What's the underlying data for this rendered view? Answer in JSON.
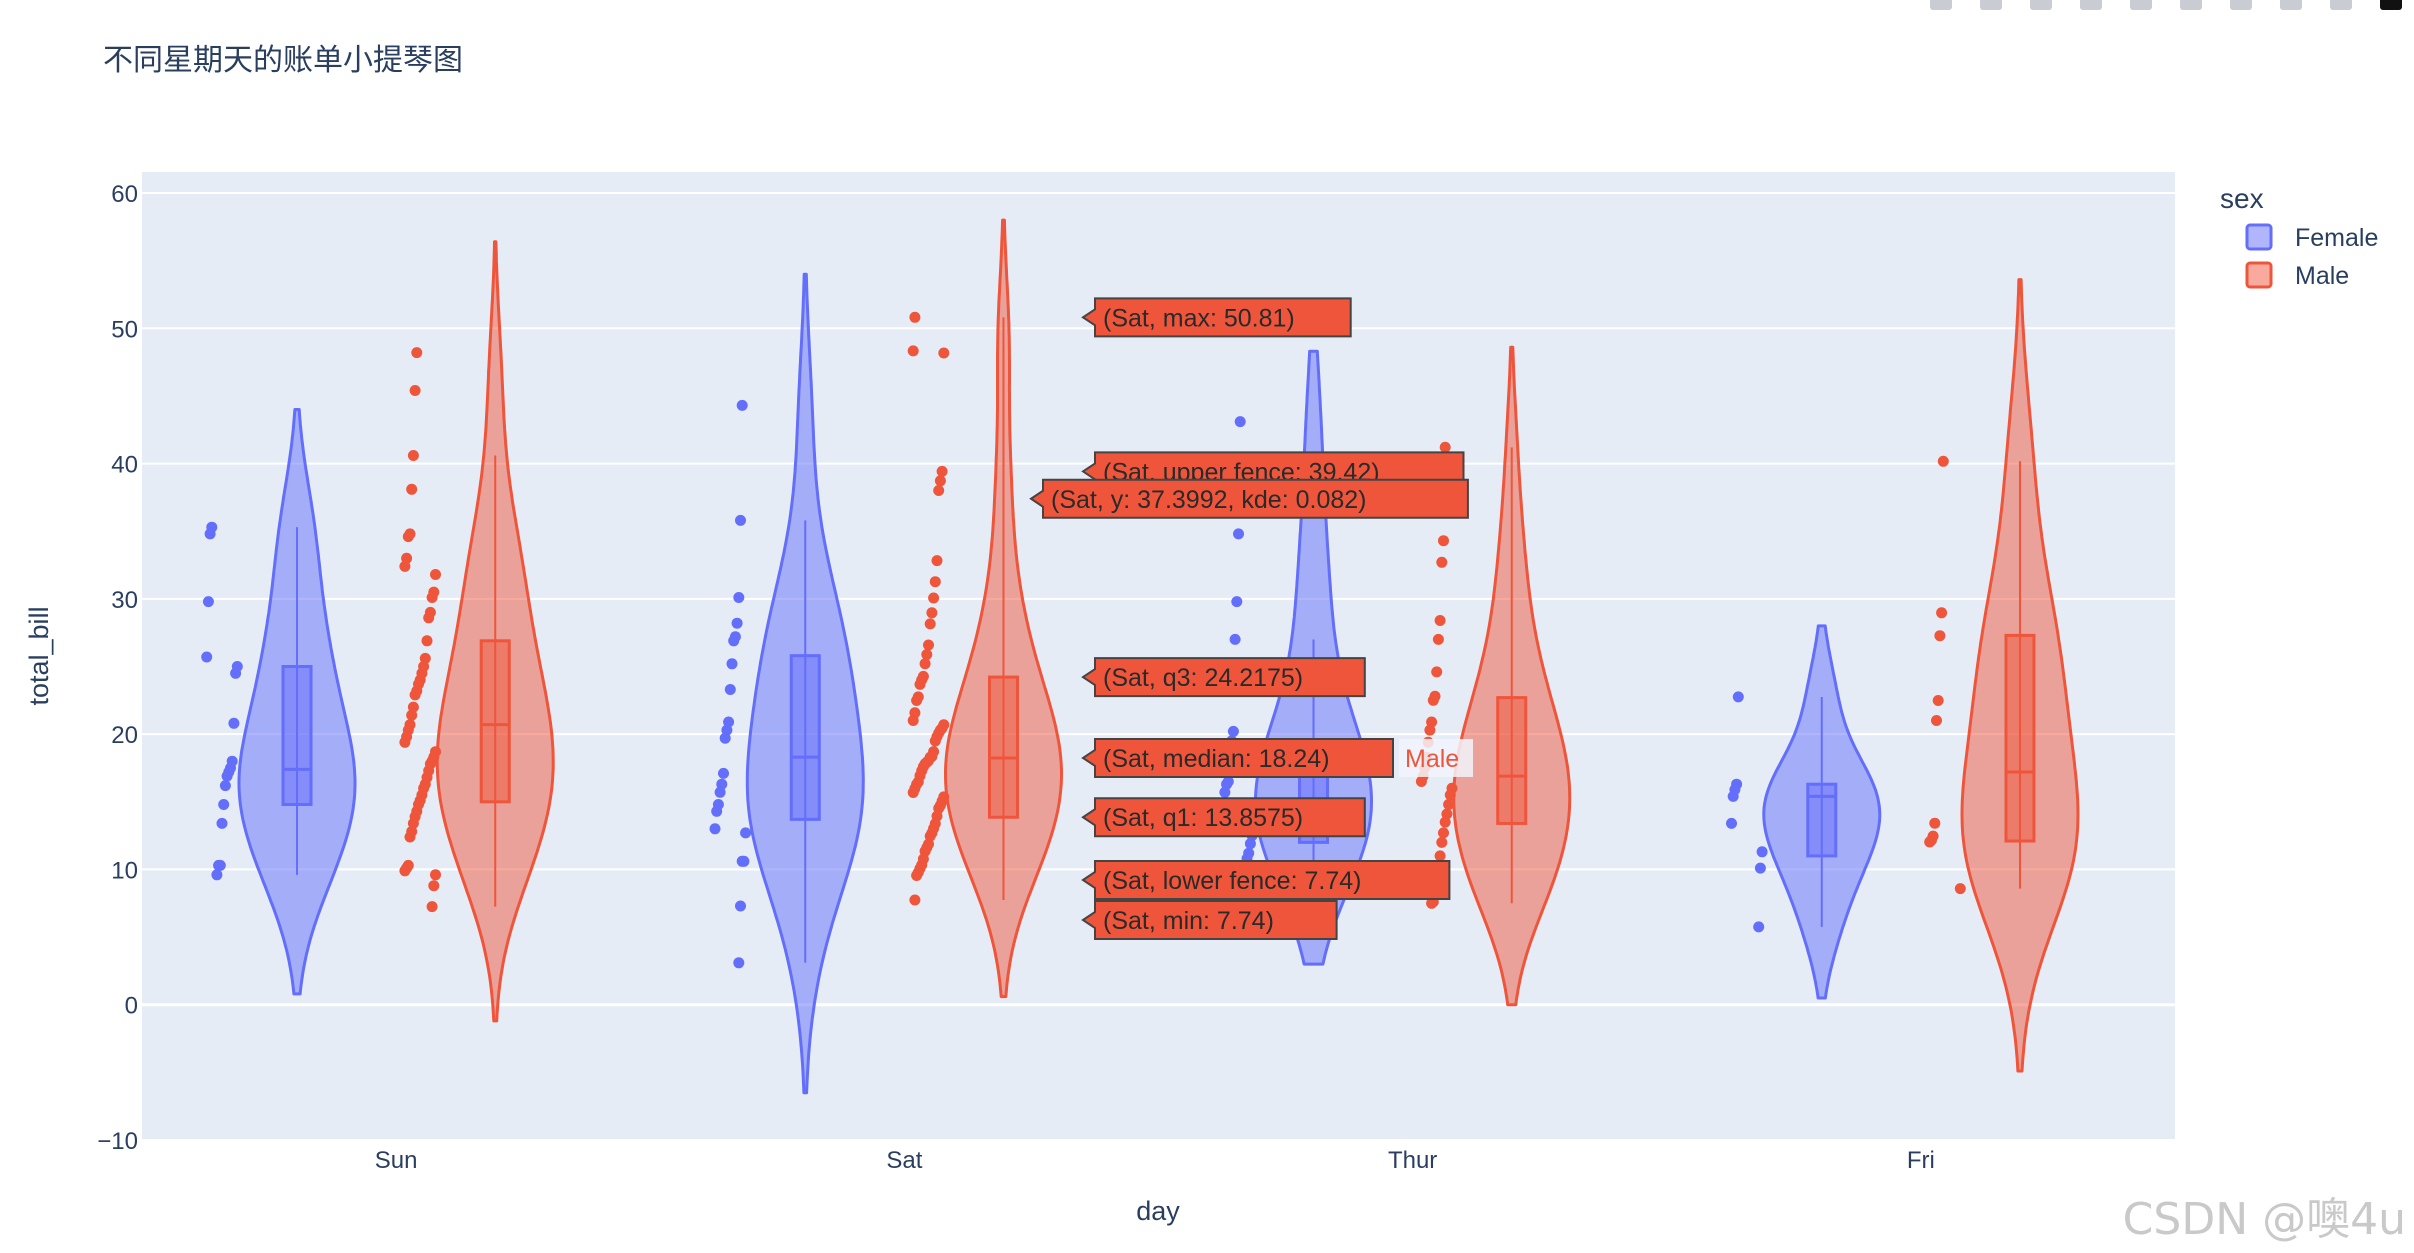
{
  "chart_data": {
    "type": "violin",
    "title": "不同星期天的账单小提琴图",
    "xlabel": "day",
    "ylabel": "total_bill",
    "categories": [
      "Sun",
      "Sat",
      "Thur",
      "Fri"
    ],
    "ylim": [
      -10,
      60
    ],
    "yticks": [
      -10,
      0,
      10,
      20,
      30,
      40,
      50,
      60
    ],
    "ytick_labels": [
      "−10",
      "0",
      "10",
      "20",
      "30",
      "40",
      "50",
      "60"
    ],
    "legend": {
      "title": "sex",
      "position": "top-right"
    },
    "colors": {
      "Female": "#636efa",
      "Male": "#ef553b",
      "plot_bg": "#e5ecf6"
    },
    "series": [
      {
        "name": "Female",
        "violins": [
          {
            "day": "Sun",
            "min": 9.6,
            "q1": 14.8,
            "median": 17.4,
            "q3": 25.0,
            "max": 35.3,
            "kde_min": 0.8,
            "kde_max": 44.0,
            "points": [
              35.3,
              34.8,
              29.8,
              25.7,
              25.0,
              24.5,
              20.8,
              18.0,
              17.5,
              17.2,
              16.9,
              16.2,
              14.8,
              13.4,
              10.3,
              10.3,
              9.6
            ]
          },
          {
            "day": "Sat",
            "min": 3.1,
            "q1": 13.7,
            "median": 18.3,
            "q3": 25.8,
            "max": 35.8,
            "kde_min": -6.5,
            "kde_max": 54.0,
            "points": [
              44.3,
              35.8,
              30.1,
              28.2,
              27.2,
              26.9,
              25.2,
              23.3,
              20.9,
              20.3,
              19.7,
              17.1,
              16.3,
              15.7,
              14.8,
              14.3,
              13.0,
              12.7,
              10.6,
              10.6,
              7.3,
              3.1
            ]
          },
          {
            "day": "Thur",
            "min": 8.5,
            "q1": 12.0,
            "median": 13.8,
            "q3": 18.5,
            "max": 27.0,
            "kde_min": 3.0,
            "kde_max": 48.3,
            "points": [
              43.1,
              34.8,
              29.8,
              27.0,
              20.2,
              19.5,
              17.5,
              16.5,
              16.3,
              15.7,
              14.1,
              13.5,
              12.5,
              11.9,
              11.2,
              10.8
            ]
          },
          {
            "day": "Fri",
            "min": 5.75,
            "q1": 11.0,
            "median": 15.4,
            "q3": 16.3,
            "max": 22.75,
            "kde_min": 0.5,
            "kde_max": 28.0,
            "points": [
              22.75,
              16.3,
              15.9,
              15.4,
              13.4,
              11.3,
              10.1,
              5.75
            ]
          }
        ]
      },
      {
        "name": "Male",
        "violins": [
          {
            "day": "Sun",
            "min": 7.25,
            "q1": 15.0,
            "median": 20.7,
            "q3": 26.9,
            "max": 40.6,
            "kde_min": -1.2,
            "kde_max": 56.4,
            "points": [
              48.2,
              45.4,
              40.6,
              38.1,
              34.8,
              34.6,
              33.0,
              32.4,
              31.8,
              30.5,
              30.1,
              29.0,
              28.6,
              26.9,
              25.6,
              25.0,
              24.5,
              24.0,
              23.7,
              23.2,
              22.9,
              22.0,
              21.4,
              20.7,
              20.3,
              19.8,
              19.4,
              18.7,
              18.3,
              18.0,
              17.8,
              17.3,
              16.8,
              16.3,
              16.0,
              15.5,
              15.1,
              14.8,
              14.3,
              13.9,
              13.4,
              12.8,
              12.4,
              10.3,
              10.1,
              9.9,
              9.6,
              8.8,
              7.25
            ]
          },
          {
            "day": "Sat",
            "min": 7.74,
            "q1": 13.8575,
            "median": 18.24,
            "q3": 24.2175,
            "max": 50.81,
            "kde_min": 0.6,
            "kde_max": 58.0,
            "points": [
              50.81,
              48.33,
              48.17,
              39.42,
              38.73,
              38.01,
              32.83,
              31.27,
              30.06,
              28.97,
              28.15,
              26.59,
              25.89,
              25.21,
              24.27,
              24.01,
              23.68,
              22.75,
              22.49,
              21.58,
              21.01,
              20.69,
              20.45,
              20.29,
              20.08,
              19.82,
              19.49,
              18.71,
              18.35,
              18.29,
              18.04,
              17.92,
              17.81,
              17.59,
              17.29,
              16.93,
              16.47,
              16.29,
              15.98,
              15.69,
              15.36,
              15.04,
              14.73,
              14.52,
              13.94,
              13.39,
              13.03,
              12.69,
              12.46,
              11.87,
              11.61,
              11.35,
              10.77,
              10.33,
              10.07,
              9.78,
              9.55,
              7.74
            ]
          },
          {
            "day": "Thur",
            "min": 7.5,
            "q1": 13.4,
            "median": 16.9,
            "q3": 22.7,
            "max": 41.2,
            "kde_min": 0.0,
            "kde_max": 48.6,
            "points": [
              41.2,
              34.3,
              32.7,
              28.4,
              27.0,
              24.6,
              22.8,
              22.5,
              20.9,
              20.3,
              19.4,
              18.3,
              17.5,
              16.9,
              16.5,
              16.0,
              15.5,
              14.8,
              14.1,
              13.5,
              12.7,
              12.0,
              11.0,
              10.0,
              9.0,
              8.5,
              7.6,
              7.5
            ]
          },
          {
            "day": "Fri",
            "min": 8.58,
            "q1": 12.1,
            "median": 17.2,
            "q3": 27.3,
            "max": 40.17,
            "kde_min": -4.9,
            "kde_max": 53.6,
            "points": [
              40.17,
              28.97,
              27.28,
              22.49,
              21.01,
              13.42,
              12.46,
              12.16,
              12.03,
              8.58
            ]
          }
        ]
      }
    ],
    "hover_labels": [
      "(Sat, max: 50.81)",
      "(Sat, upper fence: 39.42)",
      "(Sat, y: 37.3992, kde: 0.082)",
      "(Sat, q3: 24.2175)",
      "(Sat, median: 18.24)",
      "(Sat, q1: 13.8575)",
      "(Sat, lower fence: 7.74)",
      "(Sat, min: 7.74)"
    ],
    "hover_trace_name": "Male"
  },
  "watermark": "CSDN @噢4u"
}
